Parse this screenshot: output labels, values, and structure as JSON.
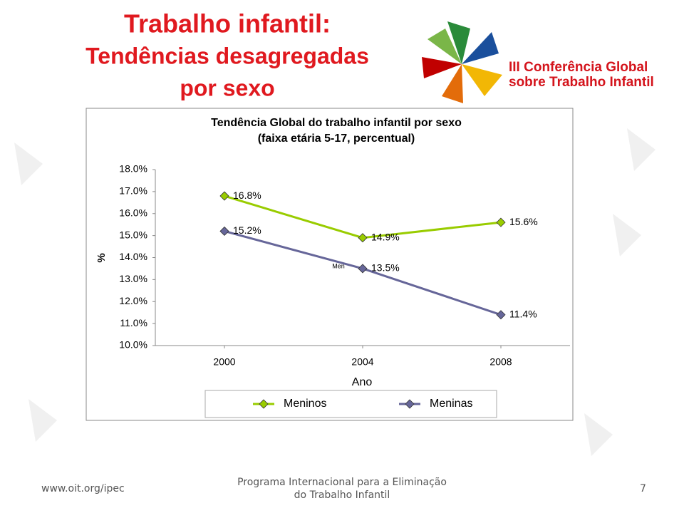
{
  "slide": {
    "title_lines": [
      "Trabalho infantil:",
      "Tendências desagregadas",
      "por sexo"
    ],
    "logo_lines": [
      "III Conferência Global",
      "sobre Trabalho Infantil"
    ],
    "footer_left": "www.oit.org/ipec",
    "footer_center_lines": [
      "Programa Internacional para a Eliminação",
      "do Trabalho Infantil"
    ],
    "page_number": "7"
  },
  "chart_data": {
    "type": "line",
    "title_lines": [
      "Tendência Global do trabalho infantil por sexo",
      "(faixa etária 5-17, percentual)"
    ],
    "x_label": "Ano",
    "y_label": "%",
    "x": [
      2000,
      2004,
      2008
    ],
    "xlim": [
      1998,
      2010
    ],
    "xticks": [
      2000,
      2004,
      2008
    ],
    "ylim": [
      10,
      18
    ],
    "yticks": [
      {
        "value": 10,
        "label": "10.0%"
      },
      {
        "value": 11,
        "label": "11.0%"
      },
      {
        "value": 12,
        "label": "12.0%"
      },
      {
        "value": 13,
        "label": "13.0%"
      },
      {
        "value": 14,
        "label": "14.0%"
      },
      {
        "value": 15,
        "label": "15.0%"
      },
      {
        "value": 16,
        "label": "16.0%"
      },
      {
        "value": 17,
        "label": "17.0%"
      },
      {
        "value": 18,
        "label": "18.0%"
      }
    ],
    "grid": false,
    "legend": "bottom",
    "annotation": "Men",
    "series": [
      {
        "name": "Meninos",
        "color": "#99cc00",
        "values": [
          16.8,
          14.9,
          15.6
        ],
        "value_labels": [
          "16.8%",
          "14.9%",
          "15.6%"
        ]
      },
      {
        "name": "Meninas",
        "color": "#666699",
        "values": [
          15.2,
          13.5,
          11.4
        ],
        "value_labels": [
          "15.2%",
          "13.5%",
          "11.4%"
        ]
      }
    ]
  }
}
